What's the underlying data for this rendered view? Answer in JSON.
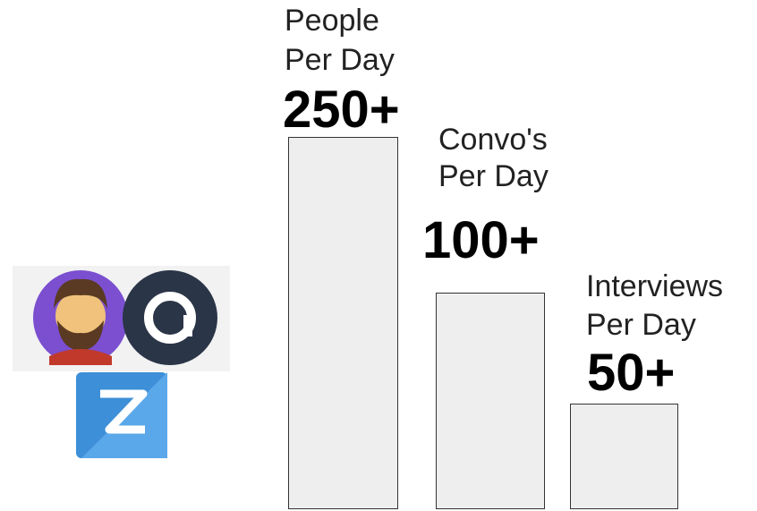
{
  "stats": [
    {
      "label_lines": [
        "People",
        "Per Day"
      ],
      "value_label": "250+"
    },
    {
      "label_lines": [
        "Convo's",
        "Per Day"
      ],
      "value_label": "100+"
    },
    {
      "label_lines": [
        "Interviews",
        "Per Day"
      ],
      "value_label": "50+"
    }
  ]
}
